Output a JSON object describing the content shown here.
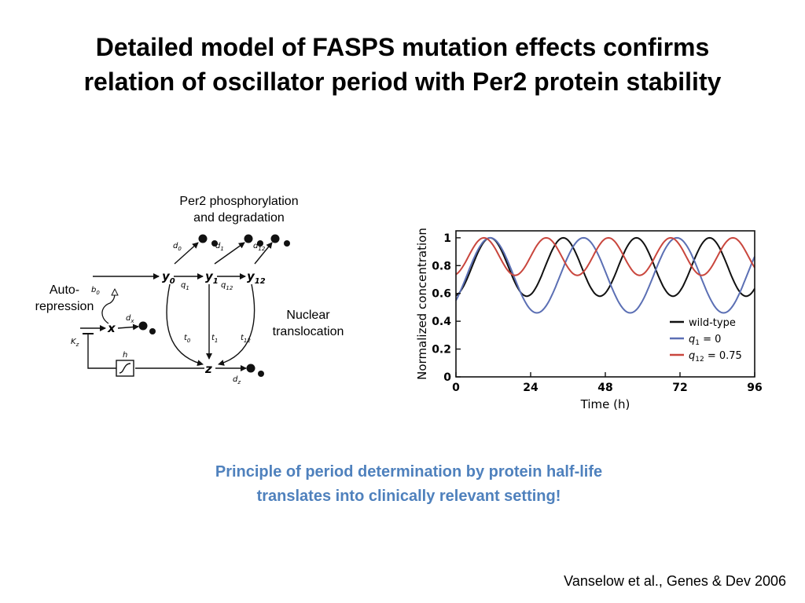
{
  "slide": {
    "title_line1": "Detailed model of FASPS mutation effects confirms",
    "title_line2": "relation of oscillator period with Per2 protein stability",
    "highlight_line1": "Principle of period determination by protein half-life",
    "highlight_line2": "translates into clinically relevant setting!",
    "citation": "Vanselow et al., Genes & Dev 2006",
    "highlight_color": "#4F81BD"
  },
  "diagram": {
    "label_per2_line1": "Per2 phosphorylation",
    "label_per2_line2": "and degradation",
    "label_auto_line1": "Auto-",
    "label_auto_line2": "repression",
    "label_nuclear_line1": "Nuclear",
    "label_nuclear_line2": "translocation",
    "nodes": {
      "y0": "y",
      "y0_sub": "0",
      "y1": "y",
      "y1_sub": "1",
      "y12": "y",
      "y12_sub": "12",
      "x": "x",
      "z": "z"
    },
    "params": {
      "d0": "d",
      "d0_sub": "0",
      "d1": "d",
      "d1_sub": "1",
      "d12": "d",
      "d12_sub": "12",
      "dx": "d",
      "dx_sub": "x",
      "dz": "d",
      "dz_sub": "z",
      "b0": "b",
      "b0_sub": "0",
      "q1": "q",
      "q1_sub": "1",
      "q12": "q",
      "q12_sub": "12",
      "t0": "t",
      "t0_sub": "0",
      "t1": "t",
      "t1_sub": "1",
      "t12": "t",
      "t12_sub": "12",
      "h": "h",
      "kz": "K",
      "kz_sub": "z"
    }
  },
  "chart_data": {
    "type": "line",
    "xlabel": "Time (h)",
    "ylabel": "Normalized concentration",
    "xlim": [
      0,
      96
    ],
    "ylim": [
      0,
      1.05
    ],
    "xticks": [
      0,
      24,
      48,
      72,
      96
    ],
    "yticks": [
      0,
      0.2,
      0.4,
      0.6,
      0.8,
      1
    ],
    "ytick_labels": [
      "0",
      "0.2",
      "0.4",
      "0.6",
      "0.8",
      "1"
    ],
    "legend_position": "bottom-right",
    "grid": false,
    "series": [
      {
        "name": "wild-type",
        "name_var": "",
        "name_sub": "",
        "name_rest": "",
        "color": "#111111",
        "period": 23.5,
        "phase_max": 11,
        "min": 0.58,
        "max": 1.0
      },
      {
        "name": "",
        "name_var": "q",
        "name_sub": "1",
        "name_rest": " = 0",
        "color": "#5B6FB4",
        "period": 30,
        "phase_max": 11,
        "min": 0.46,
        "max": 1.0
      },
      {
        "name": "",
        "name_var": "q",
        "name_sub": "12",
        "name_rest": " = 0.75",
        "color": "#C9463D",
        "period": 20,
        "phase_max": 9,
        "min": 0.73,
        "max": 1.0
      }
    ]
  }
}
